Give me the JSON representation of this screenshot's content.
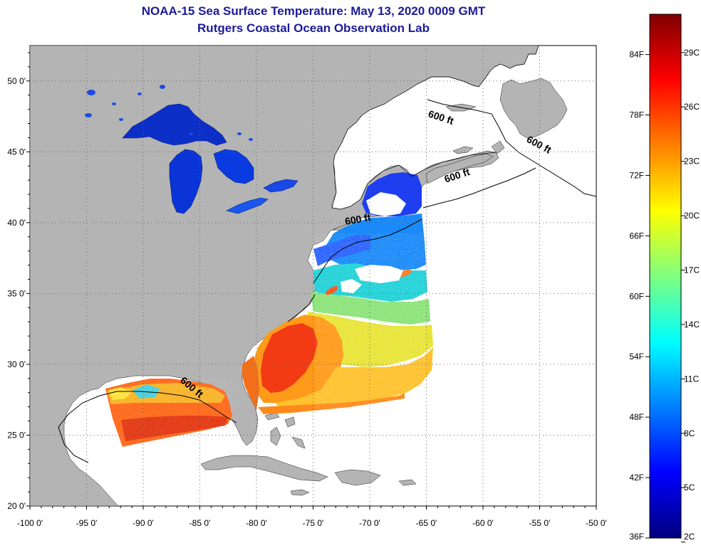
{
  "header": {
    "title": "NOAA-15 Sea Surface Temperature:  May 13, 2020 0009 GMT",
    "subtitle": "Rutgers Coastal Ocean Observation Lab"
  },
  "colors": {
    "title_text": "#1b1b99",
    "land": "#b4b4b4",
    "water": "#ffffff",
    "grid": "#666666"
  },
  "map": {
    "lon_range": [
      -100,
      -50
    ],
    "lat_range": [
      20,
      52.5
    ],
    "lon_ticks": [
      {
        "value": -100,
        "label": "-100 0'"
      },
      {
        "value": -95,
        "label": "-95 0'"
      },
      {
        "value": -90,
        "label": "-90 0'"
      },
      {
        "value": -85,
        "label": "-85 0'"
      },
      {
        "value": -80,
        "label": "-80 0'"
      },
      {
        "value": -75,
        "label": "-75 0'"
      },
      {
        "value": -70,
        "label": "-70 0'"
      },
      {
        "value": -65,
        "label": "-65 0'"
      },
      {
        "value": -60,
        "label": "-60 0'"
      },
      {
        "value": -55,
        "label": "-55 0'"
      },
      {
        "value": -50,
        "label": "-50 0'"
      }
    ],
    "lat_ticks": [
      {
        "value": 20,
        "label": "20 0'"
      },
      {
        "value": 25,
        "label": "25 0'"
      },
      {
        "value": 30,
        "label": "30 0'"
      },
      {
        "value": 35,
        "label": "35 0'"
      },
      {
        "value": 40,
        "label": "40 0'"
      },
      {
        "value": 45,
        "label": "45 0'"
      },
      {
        "value": 50,
        "label": "50 0'"
      }
    ],
    "depth_labels": [
      {
        "text": "600 ft",
        "lon": -63.8,
        "lat": 47.2,
        "rotation": 18
      },
      {
        "text": "600 ft",
        "lon": -55.2,
        "lat": 45.3,
        "rotation": 28
      },
      {
        "text": "600 ft",
        "lon": -62.2,
        "lat": 43.1,
        "rotation": -18
      },
      {
        "text": "600 ft",
        "lon": -71.0,
        "lat": 40.0,
        "rotation": -10
      },
      {
        "text": "600 ft",
        "lon": -85.9,
        "lat": 28.2,
        "rotation": 40
      }
    ]
  },
  "colorbar": {
    "min_f": 36,
    "max_f": 88,
    "colors": [
      "#00007f",
      "#0000ff",
      "#007fff",
      "#00ffff",
      "#7fff7f",
      "#ffff00",
      "#ff7f00",
      "#ff0000",
      "#7f0000"
    ],
    "fahrenheit_ticks": [
      {
        "value": 36,
        "label": "36F"
      },
      {
        "value": 42,
        "label": "42F"
      },
      {
        "value": 48,
        "label": "48F"
      },
      {
        "value": 54,
        "label": "54F"
      },
      {
        "value": 60,
        "label": "60F"
      },
      {
        "value": 66,
        "label": "66F"
      },
      {
        "value": 72,
        "label": "72F"
      },
      {
        "value": 78,
        "label": "78F"
      },
      {
        "value": 84,
        "label": "84F"
      }
    ],
    "celsius_ticks": [
      {
        "value": 2,
        "label": "2C"
      },
      {
        "value": 5,
        "label": "5C"
      },
      {
        "value": 8,
        "label": "8C"
      },
      {
        "value": 11,
        "label": "11C"
      },
      {
        "value": 14,
        "label": "14C"
      },
      {
        "value": 17,
        "label": "17C"
      },
      {
        "value": 20,
        "label": "20C"
      },
      {
        "value": 23,
        "label": "23C"
      },
      {
        "value": 26,
        "label": "26C"
      },
      {
        "value": 29,
        "label": "29C"
      }
    ]
  }
}
